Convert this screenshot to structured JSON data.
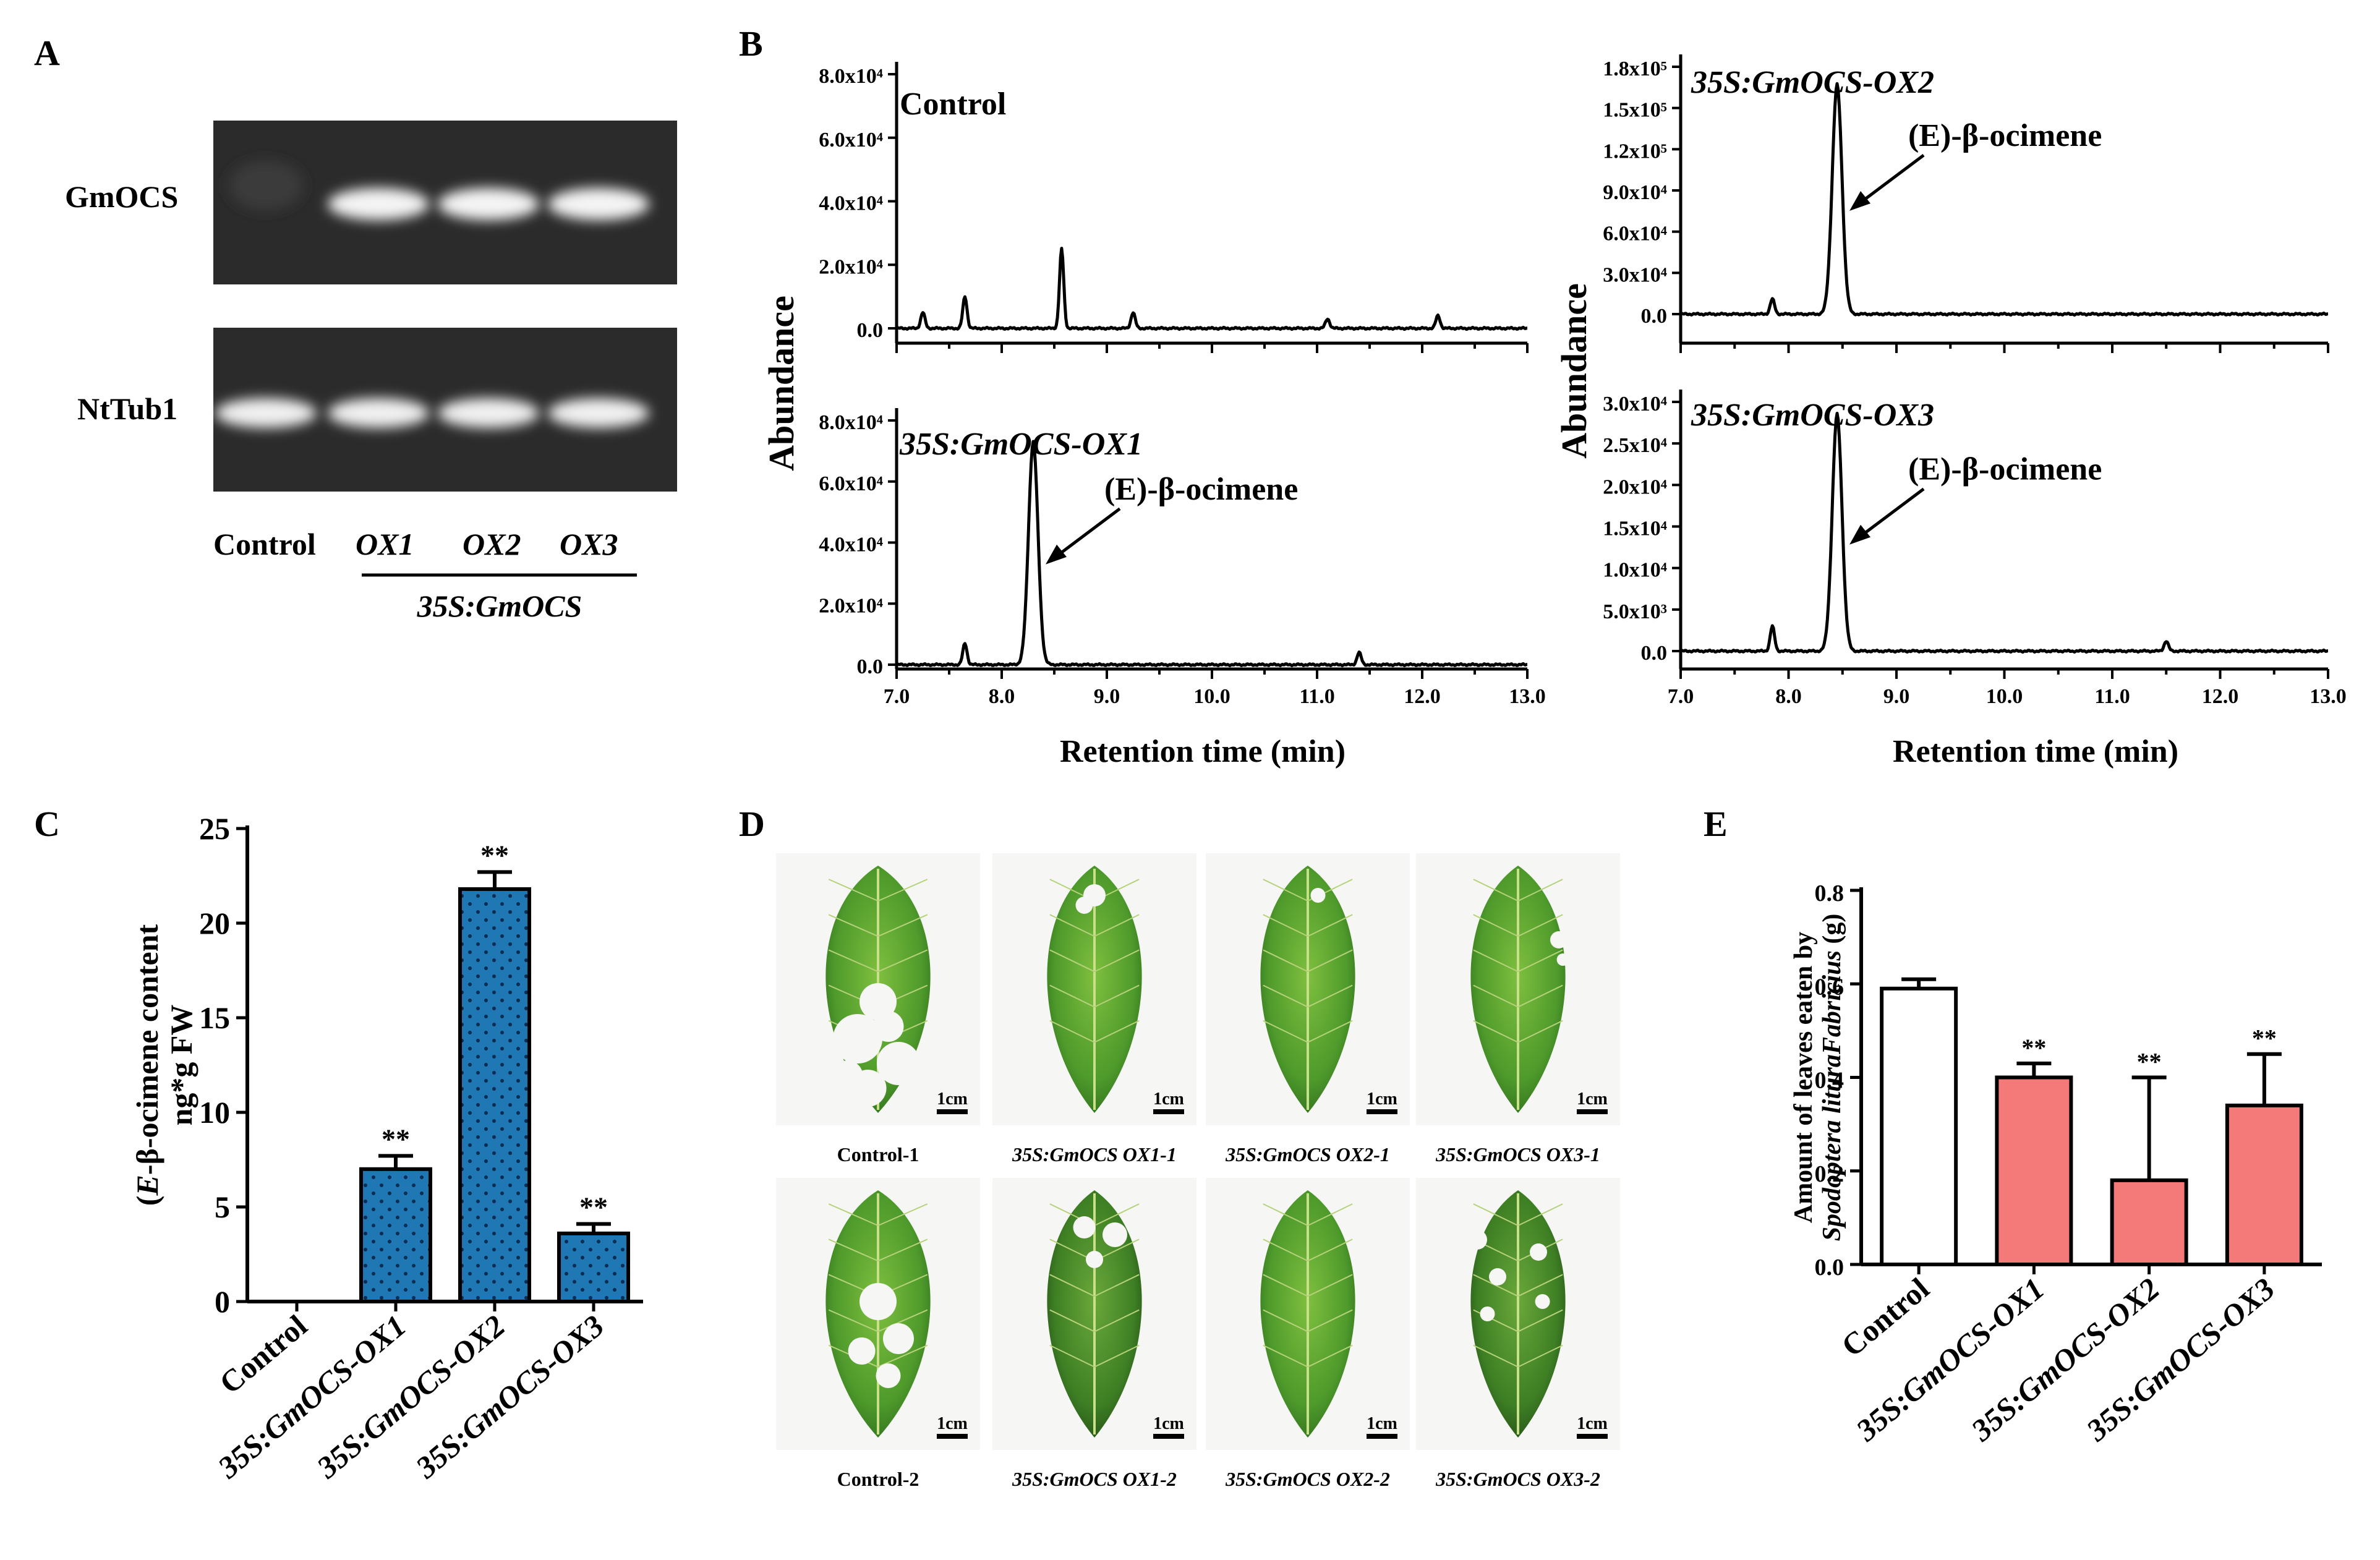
{
  "panels": {
    "A": {
      "letter": "A",
      "gel_top_label": "GmOCS",
      "gel_bottom_label": "NtTub1",
      "lanes": [
        "Control",
        "OX1",
        "OX2",
        "OX3"
      ],
      "group_label": "35S:GmOCS"
    },
    "B": {
      "letter": "B",
      "ylabel": "Abundance",
      "xlabel": "Retention time (min)",
      "peak_label": "(E)-β-ocimene",
      "plots": [
        {
          "title": "Control",
          "yticks": [
            "8.0x10⁴",
            "6.0x10⁴",
            "4.0x10⁴",
            "2.0x10⁴",
            "0.0"
          ],
          "ymax": 80000
        },
        {
          "title": "35S:GmOCS-OX1",
          "yticks": [
            "8.0x10⁴",
            "6.0x10⁴",
            "4.0x10⁴",
            "2.0x10⁴",
            "0.0"
          ],
          "ymax": 80000
        },
        {
          "title": "35S:GmOCS-OX2",
          "yticks": [
            "1.8x10⁵",
            "1.5x10⁵",
            "1.2x10⁵",
            "9.0x10⁴",
            "6.0x10⁴",
            "3.0x10⁴",
            "0.0"
          ],
          "ymax": 180000
        },
        {
          "title": "35S:GmOCS-OX3",
          "yticks": [
            "3.0x10⁴",
            "2.5x10⁴",
            "2.0x10⁴",
            "1.5x10⁴",
            "1.0x10⁴",
            "5.0x10³",
            "0.0"
          ],
          "ymax": 30000
        }
      ],
      "xticks": [
        "7.0",
        "8.0",
        "9.0",
        "10.0",
        "11.0",
        "12.0",
        "13.0"
      ]
    },
    "C": {
      "letter": "C"
    },
    "D": {
      "letter": "D",
      "scale_label": "1cm",
      "captions": [
        "Control-1",
        "35S:GmOCS OX1-1",
        "35S:GmOCS OX2-1",
        "35S:GmOCS OX3-1",
        "Control-2",
        "35S:GmOCS OX1-2",
        "35S:GmOCS OX2-2",
        "35S:GmOCS OX3-2"
      ]
    },
    "E": {
      "letter": "E"
    }
  },
  "chart_data": [
    {
      "id": "C",
      "type": "bar",
      "ylabel": "(E)-β-ocimene content ng*g FW",
      "categories": [
        "Control",
        "35S:GmOCS-OX1",
        "35S:GmOCS-OX2",
        "35S:GmOCS-OX3"
      ],
      "values": [
        0,
        7.0,
        21.8,
        3.6
      ],
      "errors": [
        0,
        0.7,
        0.9,
        0.5
      ],
      "significance": [
        "",
        "**",
        "**",
        "**"
      ],
      "ylim": [
        0,
        25
      ],
      "yticks": [
        0,
        5,
        10,
        15,
        20,
        25
      ],
      "color": "#1f77b4"
    },
    {
      "id": "E",
      "type": "bar",
      "ylabel": "Amount of leaves eaten by Spodoptera lituraFabricius (g)",
      "categories": [
        "Control",
        "35S:GmOCS-OX1",
        "35S:GmOCS-OX2",
        "35S:GmOCS-OX3"
      ],
      "values": [
        0.59,
        0.4,
        0.18,
        0.34
      ],
      "errors": [
        0.02,
        0.03,
        0.22,
        0.11
      ],
      "significance": [
        "",
        "**",
        "**",
        "**"
      ],
      "ylim": [
        0,
        0.8
      ],
      "yticks": [
        "0.0",
        "0.2",
        "0.4",
        "0.6",
        "0.8"
      ],
      "colors": [
        "#ffffff",
        "#f47a7a",
        "#f47a7a",
        "#f47a7a"
      ]
    },
    {
      "id": "B-chromatograms",
      "type": "line",
      "xlim": [
        7.0,
        13.0
      ],
      "xlabel": "Retention time (min)",
      "ylabel": "Abundance",
      "series": [
        {
          "name": "Control",
          "peaks": [
            [
              7.25,
              5000
            ],
            [
              7.65,
              10000
            ],
            [
              8.57,
              25000
            ],
            [
              9.25,
              5000
            ],
            [
              11.1,
              3000
            ],
            [
              12.15,
              4000
            ]
          ]
        },
        {
          "name": "35S:GmOCS-OX1",
          "peaks": [
            [
              7.65,
              7000
            ],
            [
              8.3,
              73000
            ],
            [
              11.4,
              4000
            ]
          ]
        },
        {
          "name": "35S:GmOCS-OX2",
          "peaks": [
            [
              7.85,
              11000
            ],
            [
              8.45,
              167000
            ]
          ]
        },
        {
          "name": "35S:GmOCS-OX3",
          "peaks": [
            [
              7.85,
              3000
            ],
            [
              8.45,
              28500
            ],
            [
              11.5,
              1200
            ]
          ]
        }
      ]
    }
  ]
}
